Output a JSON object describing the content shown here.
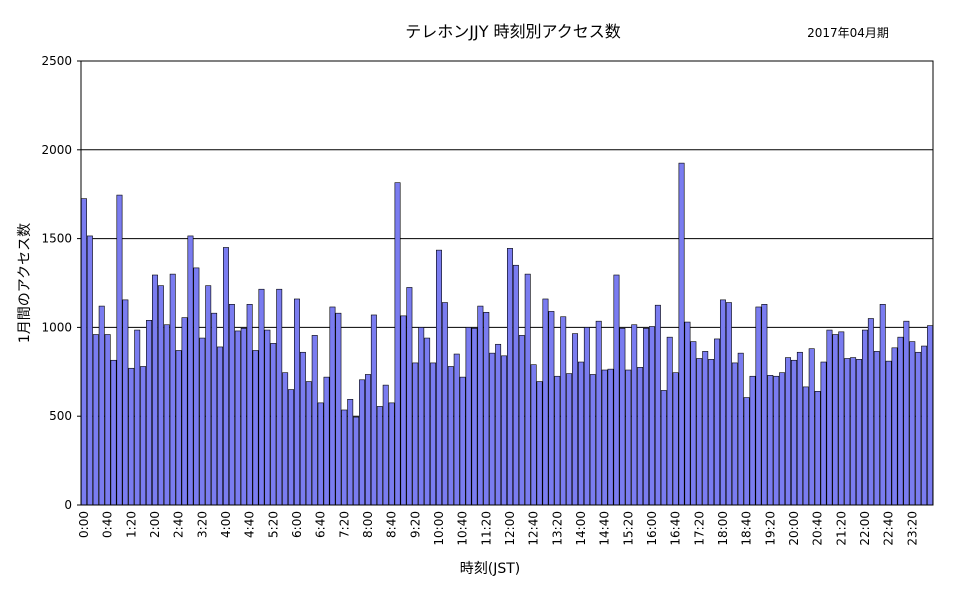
{
  "chart_data": {
    "type": "bar",
    "title": "テレホンJJY 時刻別アクセス数",
    "period_label": "2017年04月期",
    "xlabel": "時刻(JST)",
    "ylabel": "1月間のアクセス数",
    "ylim": [
      0,
      2500
    ],
    "yticks": [
      "0",
      "500",
      "1000",
      "1500",
      "2000",
      "2500"
    ],
    "grid": true,
    "bar_color": "#7a7cf0",
    "bar_stroke": "#000000",
    "interval_minutes": 10,
    "tick_labels": [
      "0:00",
      "0:40",
      "1:20",
      "2:00",
      "2:40",
      "3:20",
      "4:00",
      "4:40",
      "5:20",
      "6:00",
      "6:40",
      "7:20",
      "8:00",
      "8:40",
      "9:20",
      "10:00",
      "10:40",
      "11:20",
      "12:00",
      "12:40",
      "13:20",
      "14:00",
      "14:40",
      "15:20",
      "16:00",
      "16:40",
      "17:20",
      "18:00",
      "18:40",
      "19:20",
      "20:00",
      "20:40",
      "21:20",
      "22:00",
      "22:40",
      "23:20"
    ],
    "values": [
      1725,
      1515,
      960,
      1120,
      960,
      815,
      1745,
      1155,
      770,
      985,
      780,
      1040,
      1295,
      1235,
      1015,
      1300,
      870,
      1055,
      1515,
      1335,
      940,
      1235,
      1080,
      890,
      1450,
      1130,
      980,
      995,
      1130,
      870,
      1215,
      985,
      910,
      1215,
      745,
      650,
      1160,
      860,
      695,
      955,
      575,
      720,
      1115,
      1080,
      535,
      595,
      495,
      705,
      735,
      1070,
      555,
      675,
      575,
      1815,
      1065,
      1225,
      800,
      1000,
      940,
      800,
      1435,
      1140,
      780,
      850,
      720,
      1000,
      995,
      1120,
      1085,
      855,
      905,
      840,
      1445,
      1350,
      955,
      1300,
      790,
      695,
      1160,
      1090,
      725,
      1060,
      740,
      965,
      805,
      1000,
      735,
      1035,
      760,
      765,
      1295,
      995,
      760,
      1015,
      775,
      995,
      1005,
      1125,
      645,
      945,
      745,
      1925,
      1030,
      920,
      825,
      865,
      820,
      935,
      1155,
      1140,
      800,
      855,
      605,
      725,
      1115,
      1130,
      730,
      725,
      745,
      830,
      815,
      860,
      665,
      880,
      640,
      805,
      985,
      960,
      975,
      825,
      830,
      820,
      985,
      1050,
      865,
      1130,
      810,
      885,
      945,
      1035,
      920,
      860,
      895,
      1010
    ]
  }
}
